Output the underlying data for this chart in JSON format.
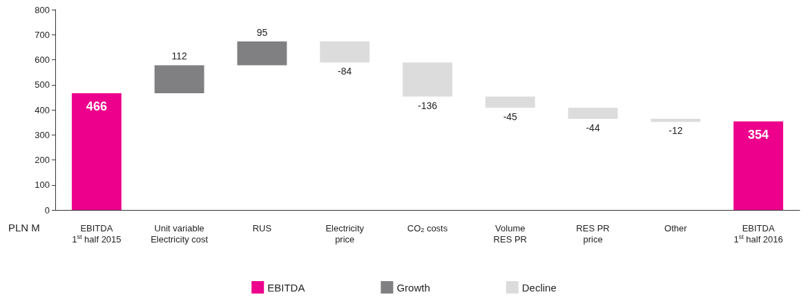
{
  "chart_data": {
    "type": "bar",
    "xlabel": "PLN M",
    "categories": [
      "EBITDA\n1$^{st}$ half 2015",
      "Unit variable\nElectricity cost",
      "RUS",
      "Electricity\nprice",
      "CO$_{2}$ costs",
      "Volume\nRES PR",
      "RES PR\nprice",
      "Other",
      "EBITDA\n1$^{st}$ half 2016"
    ],
    "series": [
      {
        "name": "EBITDA",
        "color": "#ec008c",
        "values": [
          466,
          null,
          null,
          null,
          null,
          null,
          null,
          null,
          354
        ],
        "base": [
          0,
          null,
          null,
          null,
          null,
          null,
          null,
          null,
          0
        ]
      },
      {
        "name": "Growth",
        "color": "#808083",
        "values": [
          null,
          112,
          95,
          null,
          null,
          null,
          null,
          null,
          null
        ],
        "base": [
          null,
          466,
          578,
          null,
          null,
          null,
          null,
          null,
          null
        ]
      },
      {
        "name": "Decline",
        "color": "#dcdcdd",
        "values": [
          null,
          null,
          null,
          -84,
          -136,
          -45,
          -44,
          -12,
          null
        ],
        "base": [
          null,
          null,
          null,
          673,
          589,
          453,
          408,
          364,
          null
        ]
      }
    ],
    "ylim": [
      0,
      800
    ],
    "yticks": [
      0,
      100,
      200,
      300,
      400,
      500,
      600,
      700,
      800
    ],
    "data_labels": true,
    "grid": false,
    "legend": "bottom"
  }
}
